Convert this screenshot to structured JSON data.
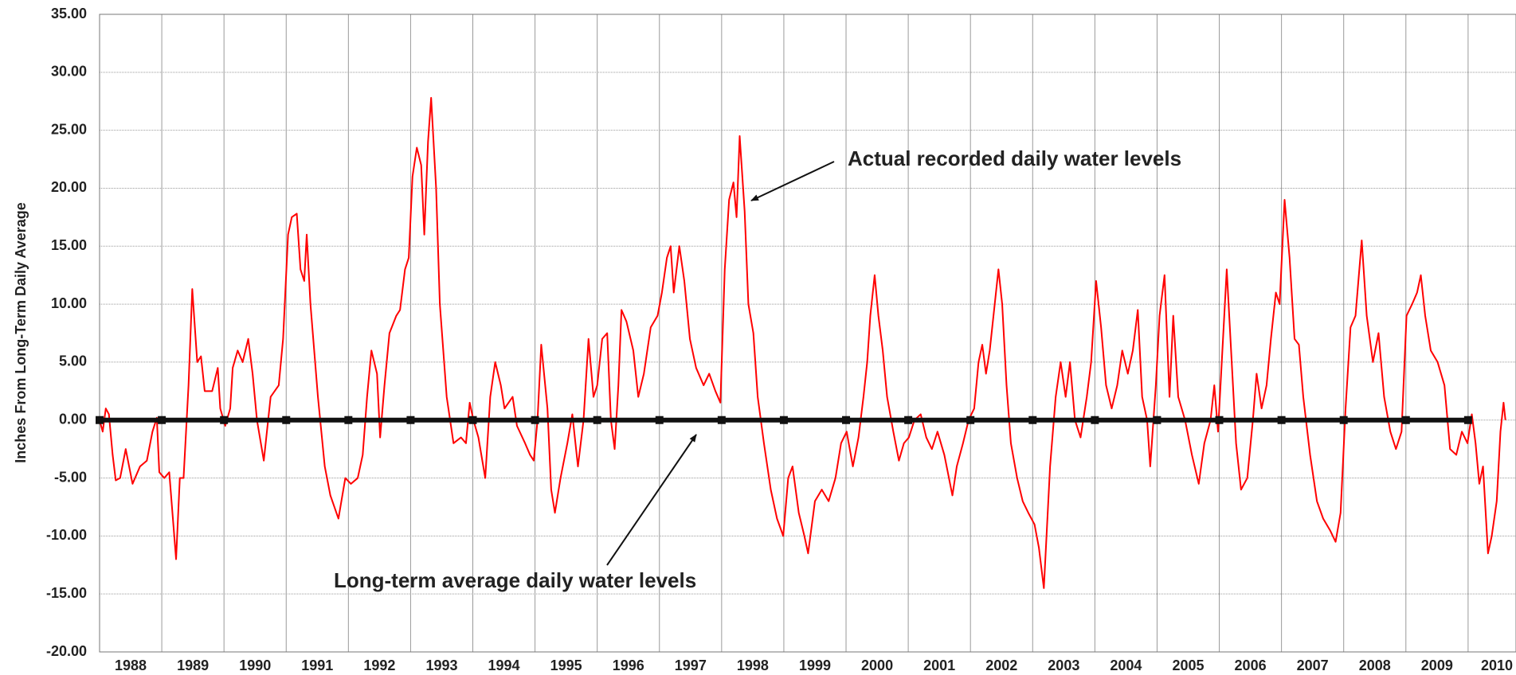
{
  "chart_data": {
    "type": "line",
    "ylabel": "Inches From Long-Term Daily Average",
    "xlim": [
      1988,
      2010.77
    ],
    "xticks": [
      1988,
      1989,
      1990,
      1991,
      1992,
      1993,
      1994,
      1995,
      1996,
      1997,
      1998,
      1999,
      2000,
      2001,
      2002,
      2003,
      2004,
      2005,
      2006,
      2007,
      2008,
      2009,
      2010
    ],
    "ylim": [
      -20,
      35
    ],
    "yticks": [
      {
        "value": -20,
        "label": "-20.00"
      },
      {
        "value": -15,
        "label": "-15.00"
      },
      {
        "value": -10,
        "label": "-10.00"
      },
      {
        "value": -5,
        "label": "-5.00"
      },
      {
        "value": 0,
        "label": "0.00"
      },
      {
        "value": 5,
        "label": "5.00"
      },
      {
        "value": 10,
        "label": "10.00"
      },
      {
        "value": 15,
        "label": "15.00"
      },
      {
        "value": 20,
        "label": "20.00"
      },
      {
        "value": 25,
        "label": "25.00"
      },
      {
        "value": 30,
        "label": "30.00"
      },
      {
        "value": 35,
        "label": "35.00"
      }
    ],
    "grid": true,
    "series": [
      {
        "name": "Actual recorded daily water levels",
        "color": "#ff0000",
        "x": [
          1988.0,
          1988.05,
          1988.1,
          1988.15,
          1988.21,
          1988.26,
          1988.33,
          1988.42,
          1988.53,
          1988.65,
          1988.76,
          1988.85,
          1988.92,
          1988.96,
          1989.04,
          1989.12,
          1989.23,
          1989.29,
          1989.35,
          1989.43,
          1989.49,
          1989.57,
          1989.63,
          1989.69,
          1989.81,
          1989.9,
          1989.94,
          1990.02,
          1990.1,
          1990.14,
          1990.22,
          1990.3,
          1990.39,
          1990.46,
          1990.53,
          1990.64,
          1990.75,
          1990.88,
          1990.95,
          1991.03,
          1991.09,
          1991.17,
          1991.23,
          1991.29,
          1991.33,
          1991.39,
          1991.51,
          1991.62,
          1991.71,
          1991.84,
          1991.95,
          1992.04,
          1992.15,
          1992.23,
          1992.3,
          1992.37,
          1992.46,
          1992.51,
          1992.58,
          1992.66,
          1992.77,
          1992.83,
          1992.91,
          1992.97,
          1993.03,
          1993.1,
          1993.17,
          1993.22,
          1993.28,
          1993.33,
          1993.41,
          1993.47,
          1993.58,
          1993.69,
          1993.81,
          1993.89,
          1993.95,
          1994.01,
          1994.09,
          1994.2,
          1994.28,
          1994.36,
          1994.45,
          1994.51,
          1994.64,
          1994.71,
          1994.84,
          1994.92,
          1994.98,
          1995.04,
          1995.1,
          1995.2,
          1995.26,
          1995.32,
          1995.41,
          1995.52,
          1995.6,
          1995.69,
          1995.78,
          1995.86,
          1995.94,
          1996.0,
          1996.08,
          1996.16,
          1996.22,
          1996.28,
          1996.34,
          1996.39,
          1996.47,
          1996.58,
          1996.66,
          1996.75,
          1996.86,
          1996.97,
          1997.04,
          1997.12,
          1997.18,
          1997.23,
          1997.32,
          1997.4,
          1997.49,
          1997.59,
          1997.71,
          1997.8,
          1997.9,
          1997.98,
          1998.05,
          1998.12,
          1998.19,
          1998.24,
          1998.29,
          1998.37,
          1998.43,
          1998.51,
          1998.58,
          1998.68,
          1998.79,
          1998.89,
          1998.99,
          1999.07,
          1999.14,
          1999.24,
          1999.33,
          1999.39,
          1999.5,
          1999.61,
          1999.72,
          1999.83,
          1999.92,
          2000.01,
          2000.11,
          2000.2,
          2000.28,
          2000.34,
          2000.39,
          2000.46,
          2000.52,
          2000.59,
          2000.66,
          2000.76,
          2000.85,
          2000.93,
          2001.01,
          2001.1,
          2001.2,
          2001.29,
          2001.38,
          2001.47,
          2001.58,
          2001.71,
          2001.78,
          2001.88,
          2001.97,
          2002.06,
          2002.13,
          2002.19,
          2002.25,
          2002.31,
          2002.39,
          2002.45,
          2002.51,
          2002.58,
          2002.65,
          2002.75,
          2002.84,
          2002.93,
          2003.03,
          2003.1,
          2003.18,
          2003.28,
          2003.37,
          2003.45,
          2003.53,
          2003.6,
          2003.68,
          2003.77,
          2003.87,
          2003.94,
          2004.02,
          2004.1,
          2004.18,
          2004.27,
          2004.36,
          2004.44,
          2004.53,
          2004.61,
          2004.69,
          2004.76,
          2004.84,
          2004.89,
          2004.98,
          2005.04,
          2005.12,
          2005.2,
          2005.26,
          2005.34,
          2005.45,
          2005.56,
          2005.67,
          2005.76,
          2005.86,
          2005.92,
          2005.98,
          2006.04,
          2006.12,
          2006.2,
          2006.27,
          2006.35,
          2006.45,
          2006.54,
          2006.6,
          2006.68,
          2006.76,
          2006.83,
          2006.91,
          2006.97,
          2007.05,
          2007.13,
          2007.21,
          2007.28,
          2007.35,
          2007.46,
          2007.57,
          2007.67,
          2007.78,
          2007.87,
          2007.95,
          2008.03,
          2008.11,
          2008.19,
          2008.29,
          2008.37,
          2008.47,
          2008.56,
          2008.65,
          2008.75,
          2008.84,
          2008.93,
          2009.01,
          2009.1,
          2009.18,
          2009.24,
          2009.31,
          2009.4,
          2009.51,
          2009.62,
          2009.71,
          2009.81,
          2009.9,
          2009.99,
          2010.06,
          2010.12,
          2010.18,
          2010.24,
          2010.32,
          2010.38,
          2010.46,
          2010.52,
          2010.57,
          2010.6
        ],
        "values": [
          0,
          -1,
          1,
          0.5,
          -3,
          -5.2,
          -5,
          -2.5,
          -5.5,
          -4,
          -3.5,
          -1,
          0.2,
          -4.5,
          -5,
          -4.5,
          -12,
          -5,
          -5,
          3,
          11.3,
          5,
          5.5,
          2.5,
          2.5,
          4.5,
          1,
          -0.5,
          1,
          4.5,
          6,
          5,
          7,
          4,
          0,
          -3.5,
          2,
          3,
          7,
          16,
          17.5,
          17.8,
          13,
          12,
          16,
          10,
          2,
          -4,
          -6.5,
          -8.5,
          -5,
          -5.5,
          -5,
          -3,
          2,
          6,
          4,
          -1.5,
          3,
          7.5,
          9,
          9.5,
          13,
          14,
          21,
          23.5,
          22,
          16,
          24,
          27.8,
          20,
          10,
          2,
          -2,
          -1.5,
          -2,
          1.5,
          0,
          -1.5,
          -5,
          2,
          5,
          3,
          1,
          2,
          -0.5,
          -2,
          -3,
          -3.5,
          0,
          6.5,
          1,
          -6,
          -8,
          -5,
          -2,
          0.5,
          -4,
          0,
          7,
          2,
          3,
          7,
          7.5,
          0,
          -2.5,
          3,
          9.5,
          8.5,
          6,
          2,
          4,
          8,
          9,
          11,
          14,
          15,
          11,
          15,
          12,
          7,
          4.5,
          3,
          4,
          2.5,
          1.5,
          13,
          19,
          20.5,
          17.5,
          24.5,
          18,
          10,
          7.5,
          2,
          -2,
          -6,
          -8.5,
          -10,
          -5,
          -4,
          -8,
          -10,
          -11.5,
          -7,
          -6,
          -7,
          -5,
          -2,
          -1,
          -4,
          -1.5,
          2,
          5,
          9,
          12.5,
          9,
          6,
          2,
          -1,
          -3.5,
          -2,
          -1.5,
          0,
          0.5,
          -1.5,
          -2.5,
          -1,
          -3,
          -6.5,
          -4,
          -2,
          0,
          1,
          5,
          6.5,
          4,
          6,
          10,
          13,
          10,
          3,
          -2,
          -5,
          -7,
          -8,
          -9,
          -11,
          -14.5,
          -4,
          2,
          5,
          2,
          5,
          0,
          -1.5,
          2,
          5,
          12,
          8,
          3,
          1,
          3,
          6,
          4,
          6,
          9.5,
          2,
          0,
          -4,
          3,
          9,
          12.5,
          2,
          9,
          2,
          0,
          -3,
          -5.5,
          -2,
          0,
          3,
          -1,
          5,
          13,
          5,
          -2,
          -6,
          -5,
          0,
          4,
          1,
          3,
          7,
          11,
          10,
          19,
          14,
          7,
          6.5,
          2,
          -3,
          -7,
          -8.5,
          -9.5,
          -10.5,
          -8,
          1,
          8,
          9,
          15.5,
          9,
          5,
          7.5,
          2,
          -1,
          -2.5,
          -1,
          9,
          10,
          11,
          12.5,
          9,
          6,
          5,
          3,
          -2.5,
          -3,
          -1,
          -2,
          0.5,
          -2,
          -5.5,
          -4,
          -11.5,
          -10,
          -7,
          -1,
          1.5,
          0
        ]
      },
      {
        "name": "Long-term average daily water levels",
        "color": "#111111",
        "x": [
          1988,
          1989,
          1990,
          1991,
          1992,
          1993,
          1994,
          1995,
          1996,
          1997,
          1998,
          1999,
          2000,
          2001,
          2002,
          2003,
          2004,
          2005,
          2006,
          2007,
          2008,
          2009,
          2010
        ],
        "values": [
          0,
          0,
          0,
          0,
          0,
          0,
          0,
          0,
          0,
          0,
          0,
          0,
          0,
          0,
          0,
          0,
          0,
          0,
          0,
          0,
          0,
          0,
          0
        ]
      }
    ]
  }
}
